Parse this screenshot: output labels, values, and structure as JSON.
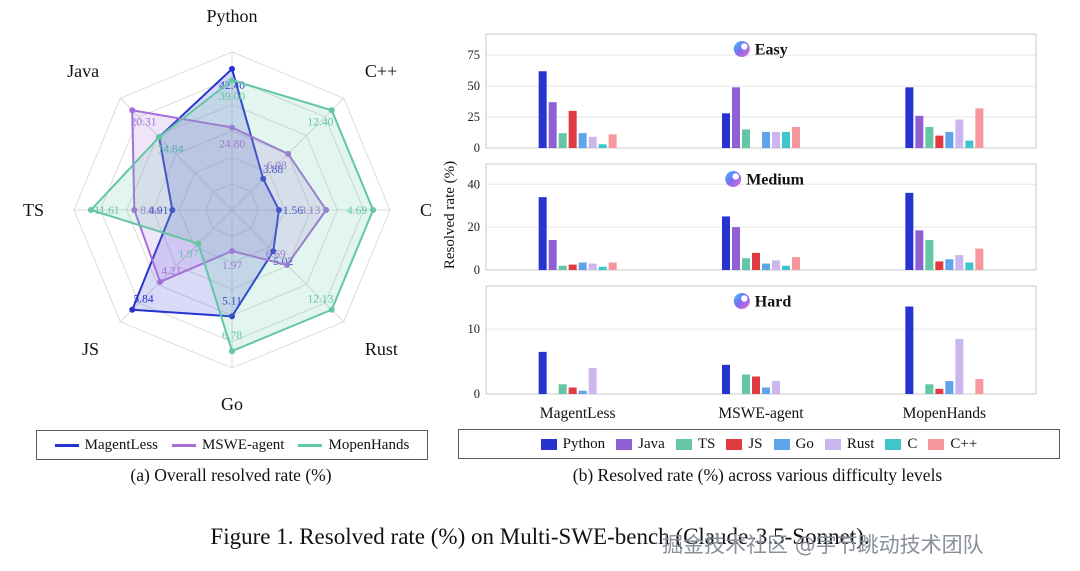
{
  "captions": {
    "a": "(a) Overall resolved rate (%)",
    "b": "(b) Resolved rate (%) across various difficulty levels",
    "figure": "Figure 1. Resolved rate (%) on Multi-SWE-bench (Claude-3.5-Sonnet).",
    "watermark": "掘金技术社区 @字节跳动技术团队"
  },
  "colors": {
    "languages": {
      "Python": "#2733d1",
      "Java": "#8f5fd6",
      "TS": "#63c6a4",
      "JS": "#e13b42",
      "Go": "#5fa4ea",
      "Rust": "#cbb6ef",
      "C": "#3ec6cb",
      "C++": "#f7969c"
    },
    "grid": "#dcdcdc",
    "panel_border": "#c9c9c9",
    "tick_text": "#222222",
    "watermark": "#8a9099",
    "icon_gradient": [
      "#35c3f5",
      "#7e6bf2",
      "#ee6cc8"
    ]
  },
  "chart_data": [
    {
      "type": "radar",
      "title": "(a) Overall resolved rate (%)",
      "axes": [
        "Python",
        "C++",
        "C",
        "Rust",
        "Go",
        "JS",
        "TS",
        "Java"
      ],
      "rings": 6,
      "series": [
        {
          "name": "MagentLess",
          "color": "#2733d1",
          "values": [
            42.4,
            3.88,
            1.56,
            5.02,
            5.11,
            5.84,
            4.91,
            14.84
          ]
        },
        {
          "name": "MSWE-agent",
          "color": "#a570d9",
          "values": [
            24.8,
            6.98,
            3.13,
            6.69,
            1.97,
            4.21,
            8.04,
            20.31
          ]
        },
        {
          "name": "MopenHands",
          "color": "#63c6a4",
          "values": [
            39.0,
            12.4,
            4.69,
            12.13,
            6.78,
            1.97,
            11.61,
            14.84
          ]
        }
      ]
    },
    {
      "type": "bar",
      "title": "(b) Resolved rate (%) across various difficulty levels",
      "ylabel": "Resolved rate (%)",
      "groups": [
        "MagentLess",
        "MSWE-agent",
        "MopenHands"
      ],
      "languages": [
        "Python",
        "Java",
        "TS",
        "JS",
        "Go",
        "Rust",
        "C",
        "C++"
      ],
      "panels": [
        {
          "label": "Easy",
          "yticks": [
            0,
            25,
            50,
            75
          ],
          "values": [
            [
              62,
              37,
              12,
              30,
              12,
              9,
              3,
              11
            ],
            [
              28,
              49,
              15,
              0,
              13,
              13,
              13,
              17
            ],
            [
              49,
              26,
              17,
              10,
              13,
              23,
              6,
              32
            ]
          ]
        },
        {
          "label": "Medium",
          "yticks": [
            0,
            20,
            40
          ],
          "values": [
            [
              34,
              14,
              2,
              2.5,
              3.5,
              3,
              1.5,
              3.5
            ],
            [
              25,
              20,
              5.5,
              8,
              3,
              4.5,
              2,
              6
            ],
            [
              36,
              18.5,
              14,
              4,
              5,
              7,
              3.5,
              10
            ]
          ]
        },
        {
          "label": "Hard",
          "yticks": [
            0,
            10
          ],
          "values": [
            [
              6.5,
              0,
              1.5,
              1,
              0.5,
              4,
              0,
              0
            ],
            [
              4.5,
              0,
              3,
              2.7,
              1,
              2,
              0,
              0
            ],
            [
              13.5,
              0,
              1.5,
              0.8,
              2,
              8.5,
              0,
              2.3
            ]
          ]
        }
      ]
    }
  ]
}
